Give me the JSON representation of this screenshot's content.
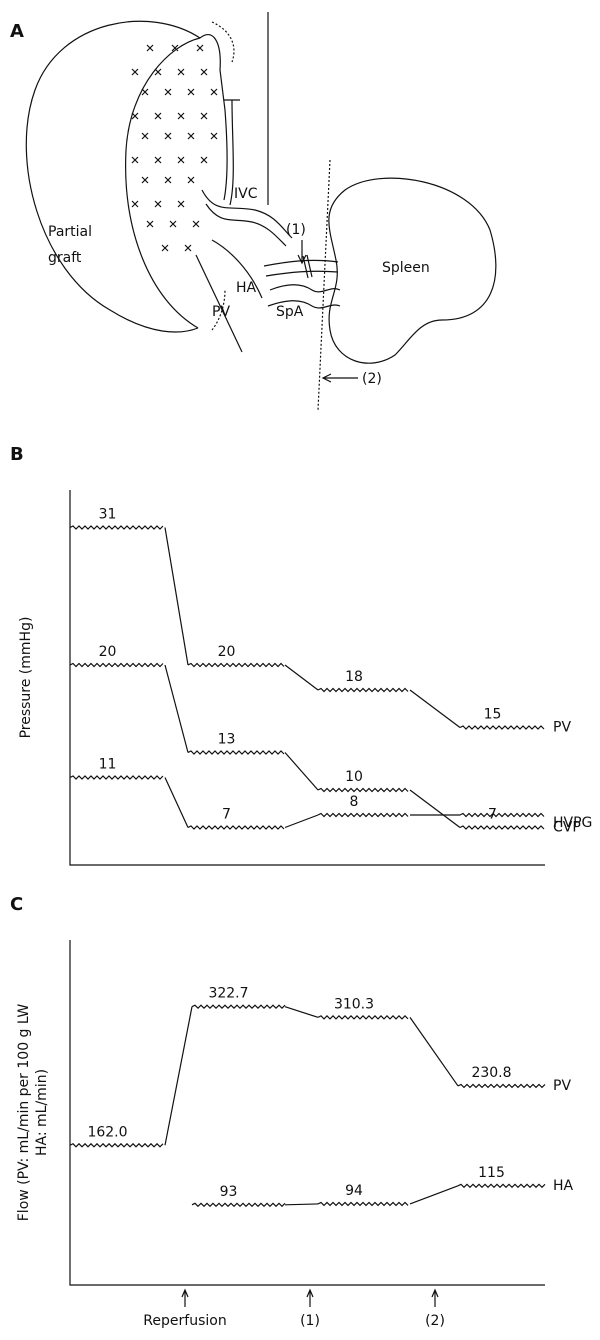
{
  "diagram": {
    "panel": "A",
    "labels": [
      "Partial",
      "graft",
      "IVC",
      "HA",
      "PV",
      "SpA",
      "(1)",
      "Spleen",
      "(2)"
    ]
  },
  "chart_data": [
    {
      "type": "line",
      "panel": "B",
      "ylabel": "Pressure (mmHg)",
      "ylim": [
        4,
        34
      ],
      "series": [
        {
          "name": "PV",
          "color": "#111111",
          "values": [
            31,
            20,
            18,
            15
          ]
        },
        {
          "name": "CVP",
          "color": "#111111",
          "values": [
            20,
            13,
            10,
            7
          ]
        },
        {
          "name": "HVPG",
          "color": "#111111",
          "values": [
            11,
            7,
            8,
            8
          ],
          "value_labels": [
            "11",
            "7",
            "8",
            null
          ]
        }
      ]
    },
    {
      "type": "line",
      "panel": "C",
      "ylabel": [
        "Flow (PV: mL/min per 100 g LW",
        "HA: mL/min)"
      ],
      "ylim": [
        0,
        400
      ],
      "events": [
        "Reperfusion",
        "(1)",
        "(2)"
      ],
      "series": [
        {
          "name": "PV",
          "color": "#111111",
          "values": [
            162.0,
            322.7,
            310.3,
            230.8
          ],
          "value_labels": [
            "162.0",
            "322.7",
            "310.3",
            "230.8"
          ]
        },
        {
          "name": "HA",
          "color": "#111111",
          "values": [
            null,
            93,
            94,
            115
          ]
        }
      ]
    }
  ]
}
